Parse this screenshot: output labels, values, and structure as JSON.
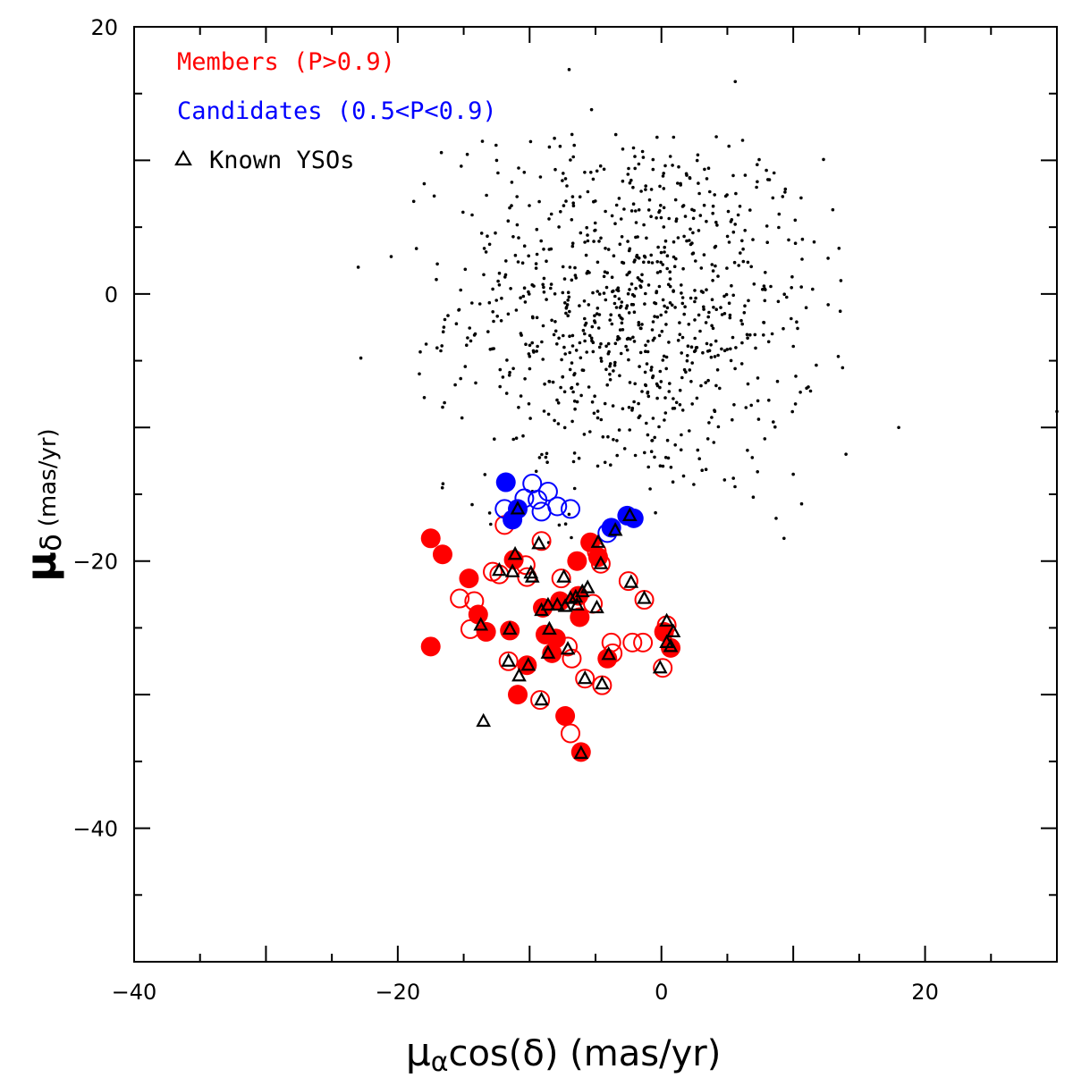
{
  "chart_data": {
    "type": "scatter",
    "xlabel": {
      "main": "μ",
      "sub": "α",
      "rest": "cos(δ) (mas/yr)"
    },
    "ylabel": {
      "main": "μ",
      "sub": "δ",
      "rest": "(mas/yr)"
    },
    "xlim": [
      -40,
      30
    ],
    "ylim": [
      -50,
      20
    ],
    "x_ticks": [
      -40,
      -20,
      0,
      20
    ],
    "y_ticks": [
      20,
      0,
      -20,
      -40
    ],
    "x_tick_labels": [
      "−40",
      "−20",
      "0",
      "20"
    ],
    "y_tick_labels": [
      "20",
      "0",
      "−20",
      "−40"
    ],
    "legend": {
      "placement": "top-left",
      "members_label": "Members (P>0.9)",
      "candidates_label": "Candidates (0.5<P<0.9)",
      "ysos_label": "Known YSOs"
    },
    "colors": {
      "members": "#ff0000",
      "candidates": "#0000ff",
      "field": "#000000",
      "yso": "#000000"
    },
    "field_cloud": {
      "count": 900,
      "center": [
        -2,
        -1
      ],
      "spread": [
        7,
        7
      ]
    },
    "field_outliers": [
      [
        -23,
        2
      ],
      [
        -20.5,
        2.8
      ],
      [
        -22.8,
        -4.8
      ],
      [
        18,
        -10
      ],
      [
        30,
        -8.8
      ],
      [
        -12.5,
        10
      ],
      [
        -7,
        16.8
      ],
      [
        5.6,
        15.9
      ],
      [
        -5.3,
        13.8
      ],
      [
        -8.5,
        11
      ],
      [
        13,
        6.3
      ],
      [
        14,
        -12
      ],
      [
        10,
        -13.5
      ],
      [
        9.3,
        -18.3
      ],
      [
        8.7,
        -16.8
      ]
    ],
    "members_filled": [
      [
        -17.5,
        -18.3
      ],
      [
        -16.6,
        -19.5
      ],
      [
        -17.5,
        -26.4
      ],
      [
        -14.6,
        -21.3
      ],
      [
        -13.9,
        -24
      ],
      [
        -13.3,
        -25.3
      ],
      [
        -11.2,
        -19.9
      ],
      [
        -10.9,
        -30
      ],
      [
        -9,
        -23.5
      ],
      [
        -8.8,
        -25.5
      ],
      [
        -8.3,
        -26.9
      ],
      [
        -7.3,
        -31.6
      ],
      [
        -6.4,
        -20
      ],
      [
        -6.3,
        -22.6
      ],
      [
        -6.2,
        -24.2
      ],
      [
        -5.4,
        -18.6
      ],
      [
        -6.1,
        -34.3
      ],
      [
        -4.8,
        -19.7
      ],
      [
        0.2,
        -25.3
      ],
      [
        0.7,
        -26.5
      ],
      [
        -8,
        -25.8
      ],
      [
        -10.2,
        -27.8
      ],
      [
        -7.7,
        -23
      ],
      [
        -11.5,
        -25.2
      ],
      [
        -4.1,
        -27.3
      ]
    ],
    "members_open": [
      [
        -15.3,
        -22.8
      ],
      [
        -14.2,
        -23
      ],
      [
        -14.5,
        -25.1
      ],
      [
        -12.3,
        -21
      ],
      [
        -11.9,
        -17.3
      ],
      [
        -9.1,
        -18.5
      ],
      [
        -11.6,
        -27.5
      ],
      [
        -10.3,
        -20.3
      ],
      [
        -9.2,
        -30.4
      ],
      [
        -7.1,
        -26.4
      ],
      [
        -6.9,
        -32.9
      ],
      [
        -6.8,
        -27.3
      ],
      [
        -5.2,
        -23.2
      ],
      [
        -4.9,
        -19.3
      ],
      [
        -3.8,
        -26.1
      ],
      [
        -3.7,
        -26.9
      ],
      [
        -2.5,
        -21.5
      ],
      [
        -2.2,
        -26.1
      ],
      [
        -1.4,
        -26.1
      ],
      [
        0.1,
        -28
      ],
      [
        -5.8,
        -28.8
      ],
      [
        -4.5,
        -29.3
      ],
      [
        -7.6,
        -21.3
      ],
      [
        -12.8,
        -20.8
      ],
      [
        -1.3,
        -22.9
      ],
      [
        -10.2,
        -21.2
      ],
      [
        0.4,
        -24.8
      ],
      [
        -4.6,
        -20.2
      ]
    ],
    "candidates_filled": [
      [
        -11.8,
        -14.1
      ],
      [
        -11.3,
        -16.9
      ],
      [
        -10.9,
        -16.1
      ],
      [
        -2.6,
        -16.6
      ],
      [
        -2.1,
        -16.8
      ],
      [
        -3.8,
        -17.5
      ]
    ],
    "candidates_open": [
      [
        -9.8,
        -14.2
      ],
      [
        -8.6,
        -14.8
      ],
      [
        -9.4,
        -15.4
      ],
      [
        -9.1,
        -16.3
      ],
      [
        -7.9,
        -15.9
      ],
      [
        -6.9,
        -16.1
      ],
      [
        -10.4,
        -15.3
      ],
      [
        -11.9,
        -16.1
      ],
      [
        -4.1,
        -17.9
      ]
    ],
    "ysos": [
      [
        -13.7,
        -24.8
      ],
      [
        -12.3,
        -20.7
      ],
      [
        -11.3,
        -20.8
      ],
      [
        -11.1,
        -19.5
      ],
      [
        -11.5,
        -25.1
      ],
      [
        -11.6,
        -27.5
      ],
      [
        -10.8,
        -28.6
      ],
      [
        -10.1,
        -27.8
      ],
      [
        -9.9,
        -20.9
      ],
      [
        -9.8,
        -21.2
      ],
      [
        -9.3,
        -18.7
      ],
      [
        -9.1,
        -23.7
      ],
      [
        -8.6,
        -23.3
      ],
      [
        -8.5,
        -25.1
      ],
      [
        -8.6,
        -26.9
      ],
      [
        -7.9,
        -23.3
      ],
      [
        -7.4,
        -21.2
      ],
      [
        -7.3,
        -23.4
      ],
      [
        -6.9,
        -22.8
      ],
      [
        -7.1,
        -26.6
      ],
      [
        -6.5,
        -22.7
      ],
      [
        -6.4,
        -23.3
      ],
      [
        -6.0,
        -22.3
      ],
      [
        -5.6,
        -22.0
      ],
      [
        -4.9,
        -23.5
      ],
      [
        -4.6,
        -20.2
      ],
      [
        -4.8,
        -18.6
      ],
      [
        -4.5,
        -29.2
      ],
      [
        -4.0,
        -27.0
      ],
      [
        -2.3,
        -21.6
      ],
      [
        -1.3,
        -22.8
      ],
      [
        -0.1,
        -28.0
      ],
      [
        0.4,
        -24.5
      ],
      [
        0.9,
        -25.3
      ],
      [
        0.7,
        -26.4
      ],
      [
        0.4,
        -26.1
      ],
      [
        -9.1,
        -30.4
      ],
      [
        -6.1,
        -34.4
      ],
      [
        -13.5,
        -32.0
      ],
      [
        -10.9,
        -16.1
      ],
      [
        -3.5,
        -17.7
      ],
      [
        -2.4,
        -16.6
      ],
      [
        -5.8,
        -28.8
      ]
    ]
  }
}
